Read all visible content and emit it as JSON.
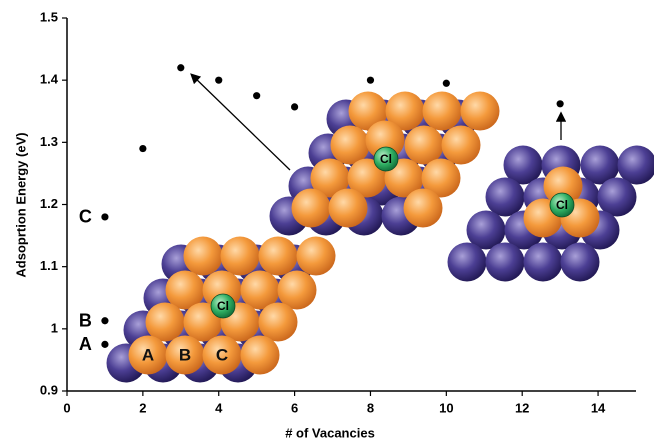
{
  "chart_data": {
    "type": "scatter",
    "xlabel": "# of Vacancies",
    "ylabel": "Adsoprtion Energy (eV)",
    "x": [
      1,
      1,
      1,
      2,
      3,
      4,
      5,
      6,
      8,
      10,
      13
    ],
    "values": [
      0.975,
      1.013,
      1.18,
      1.29,
      1.42,
      1.4,
      1.375,
      1.357,
      1.4,
      1.395,
      1.362
    ],
    "point_labels": [
      "A",
      "B",
      "C",
      null,
      null,
      null,
      null,
      null,
      null,
      null,
      null
    ],
    "color": "#000000",
    "xlim": [
      0,
      15
    ],
    "xticks": [
      0,
      2,
      4,
      6,
      8,
      10,
      12,
      14
    ],
    "ylim": [
      0.9,
      1.5
    ],
    "yticks": [
      0.9,
      1,
      1.1,
      1.2,
      1.3,
      1.4,
      1.5
    ],
    "grid": false,
    "illustrations": [
      {
        "atom": "Cl",
        "site_labels": [
          "A",
          "B",
          "C"
        ]
      },
      {
        "atom": "Cl"
      },
      {
        "atom": "Cl"
      }
    ]
  }
}
